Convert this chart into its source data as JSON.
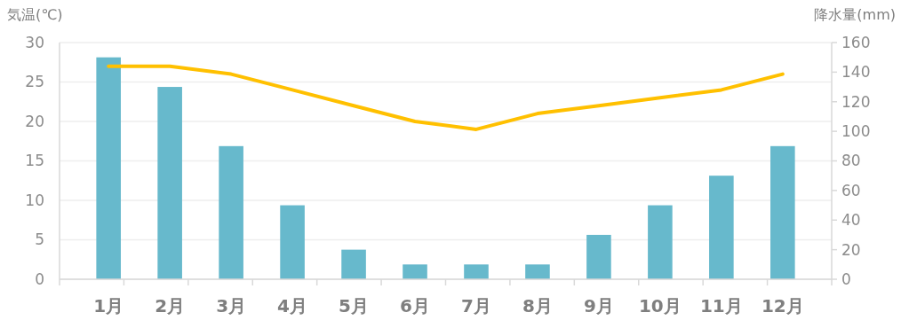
{
  "chart_data": {
    "type": "bar",
    "ylabel": "気温(℃)",
    "y2label": "降水量(mm)",
    "categories": [
      "1月",
      "2月",
      "3月",
      "4月",
      "5月",
      "6月",
      "7月",
      "8月",
      "9月",
      "10月",
      "11月",
      "12月"
    ],
    "series": [
      {
        "axis": "y2",
        "color": "#67b9cc",
        "values": [
          150,
          130,
          90,
          50,
          20,
          10,
          10,
          10,
          30,
          50,
          70,
          90
        ]
      },
      {
        "type": "line",
        "axis": "y",
        "color": "#ffc000",
        "values": [
          27,
          27,
          26,
          24,
          22,
          20,
          19,
          21,
          22,
          23,
          24,
          26
        ]
      }
    ],
    "ylim": [
      0,
      30
    ],
    "yticks": [
      0,
      5,
      10,
      15,
      20,
      25,
      30
    ],
    "y2lim": [
      0,
      160
    ],
    "y2ticks": [
      0,
      20,
      40,
      60,
      80,
      100,
      120,
      140,
      160
    ],
    "grid": "y"
  }
}
